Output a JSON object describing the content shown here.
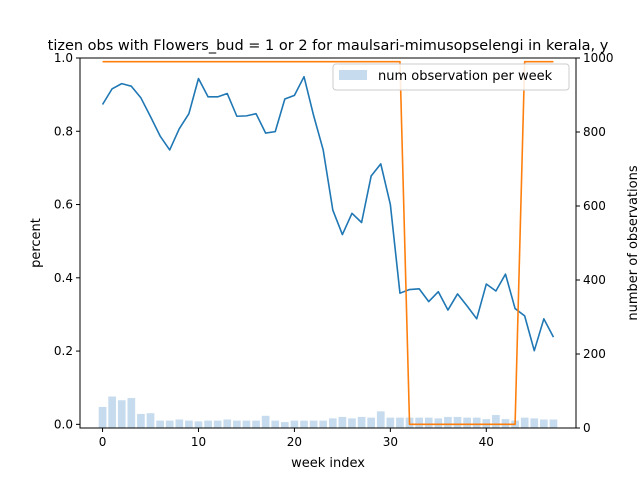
{
  "chart_data": {
    "type": "line",
    "title": "tizen obs with Flowers_bud = 1 or 2 for maulsari-mimusopselengi in kerala, y",
    "xlabel": "week index",
    "ylabel": "percent",
    "ylabel_right": "number of observations",
    "xlim": [
      -2.35,
      49.35
    ],
    "ylim": [
      -0.01,
      1.0
    ],
    "ylim_right": [
      0,
      1000
    ],
    "xticks": [
      0,
      10,
      20,
      30,
      40
    ],
    "yticks": [
      0.0,
      0.2,
      0.4,
      0.6,
      0.8,
      1.0
    ],
    "yticks_right": [
      0,
      200,
      400,
      600,
      800,
      1000
    ],
    "grid": false,
    "legend_position": "top-right",
    "x": [
      0,
      1,
      2,
      3,
      4,
      5,
      6,
      7,
      8,
      9,
      10,
      11,
      12,
      13,
      14,
      15,
      16,
      17,
      18,
      19,
      20,
      21,
      22,
      23,
      24,
      25,
      26,
      27,
      28,
      29,
      30,
      31,
      32,
      33,
      34,
      35,
      36,
      37,
      38,
      39,
      40,
      41,
      42,
      43,
      44,
      45,
      46,
      47
    ],
    "series": [
      {
        "axis": "left",
        "color": "#1f77b4",
        "values": [
          0.873,
          0.916,
          0.93,
          0.923,
          0.891,
          0.84,
          0.787,
          0.749,
          0.807,
          0.848,
          0.944,
          0.894,
          0.894,
          0.903,
          0.841,
          0.842,
          0.848,
          0.795,
          0.799,
          0.888,
          0.898,
          0.949,
          0.843,
          0.749,
          0.585,
          0.518,
          0.576,
          0.551,
          0.678,
          0.711,
          0.6,
          0.358,
          0.368,
          0.37,
          0.335,
          0.362,
          0.312,
          0.356,
          0.323,
          0.288,
          0.383,
          0.364,
          0.41,
          0.316,
          0.296,
          0.201,
          0.288,
          0.238
        ]
      },
      {
        "axis": "right",
        "color": "#ff7f0e",
        "values": [
          990,
          990,
          990,
          990,
          990,
          990,
          990,
          990,
          990,
          990,
          990,
          990,
          990,
          990,
          990,
          990,
          990,
          990,
          990,
          990,
          990,
          990,
          990,
          990,
          990,
          990,
          990,
          990,
          990,
          990,
          990,
          990,
          10,
          10,
          10,
          10,
          10,
          10,
          10,
          10,
          10,
          10,
          10,
          10,
          990,
          990,
          990,
          990
        ]
      }
    ],
    "bars": {
      "name": "num observation per week",
      "axis": "right",
      "color": "#c6dbed",
      "values": [
        57,
        85,
        75,
        81,
        38,
        40,
        20,
        20,
        23,
        20,
        18,
        20,
        20,
        23,
        20,
        20,
        20,
        33,
        20,
        16,
        20,
        20,
        20,
        20,
        26,
        30,
        26,
        30,
        28,
        45,
        28,
        28,
        28,
        28,
        28,
        26,
        30,
        30,
        28,
        28,
        24,
        35,
        24,
        20,
        28,
        26,
        23,
        23
      ]
    }
  }
}
